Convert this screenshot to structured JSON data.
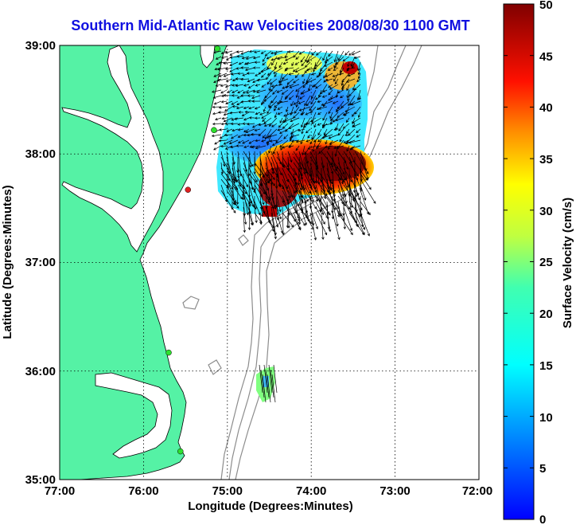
{
  "title": "Southern Mid-Atlantic Raw Velocities 2008/08/30 1100 GMT",
  "axes": {
    "x_label": "Longitude (Degrees:Minutes)",
    "y_label": "Latitude (Degrees:Minutes)",
    "x_ticks": [
      "77:00",
      "76:00",
      "75:00",
      "74:00",
      "73:00",
      "72:00"
    ],
    "y_ticks": [
      "39:00",
      "38:00",
      "37:00",
      "36:00",
      "35:00"
    ],
    "x_range": [
      -77,
      -72
    ],
    "y_range": [
      35,
      39
    ],
    "grid": "dotted"
  },
  "colorbar": {
    "label": "Surface Velocity (cm/s)",
    "ticks": [
      "0",
      "5",
      "10",
      "15",
      "20",
      "25",
      "30",
      "35",
      "40",
      "45",
      "50"
    ],
    "range": [
      0,
      50
    ],
    "colormap": "jet"
  },
  "colors": {
    "land": "#55f2a5",
    "bathymetry": "#8c8c8c",
    "title": "#1010e0",
    "station_green": "#2ee02e",
    "station_red": "#e02020"
  },
  "stations": [
    {
      "lon": -75.12,
      "lat": 38.97,
      "status": "active"
    },
    {
      "lon": -75.16,
      "lat": 38.22,
      "status": "active"
    },
    {
      "lon": -75.47,
      "lat": 37.67,
      "status": "inactive"
    },
    {
      "lon": -75.7,
      "lat": 36.17,
      "status": "active"
    },
    {
      "lon": -75.56,
      "lat": 35.26,
      "status": "active"
    }
  ]
}
